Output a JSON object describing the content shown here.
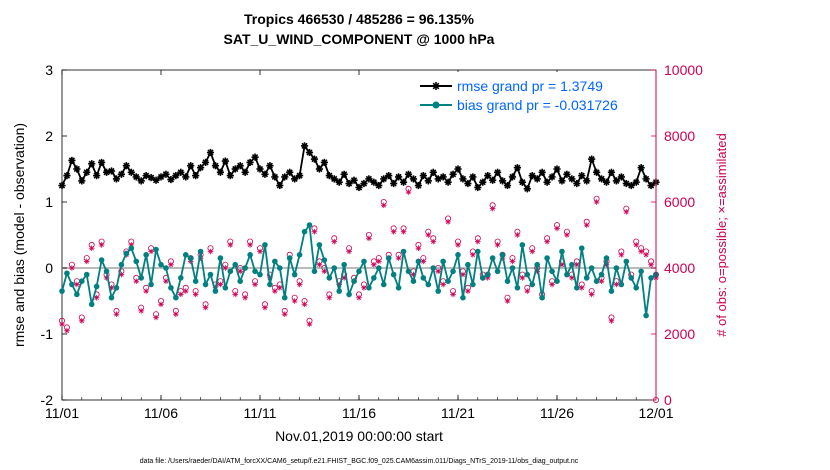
{
  "chart_data": {
    "type": "line",
    "title": "Tropics 466530 / 485286 = 96.135%",
    "subtitle": "SAT_U_WIND_COMPONENT @ 1000 hPa",
    "xlabel": "Nov.01,2019 00:00:00 start",
    "ylabel": "rmse and bias (model - observation)",
    "ylabel_right": "# of obs: o=possible; ×=assimilated",
    "footer": "data file: /Users/raeder/DAI/ATM_forcXX/CAM6_setup/f.e21.FHIST_BGC.f09_025.CAM6assim.011/Diags_NTrS_2019-11/obs_diag_output.nc",
    "x_tick_labels": [
      "11/01",
      "11/06",
      "11/11",
      "11/16",
      "11/21",
      "11/26",
      "12/01"
    ],
    "x_tick_days": [
      0,
      5,
      10,
      15,
      20,
      25,
      30
    ],
    "xlim_days": [
      0,
      30
    ],
    "ylim": [
      -2,
      3
    ],
    "y_ticks": [
      -2,
      -1,
      0,
      1,
      2,
      3
    ],
    "ylim_right": [
      0,
      10000
    ],
    "y_ticks_right": [
      0,
      2000,
      4000,
      6000,
      8000,
      10000
    ],
    "zero_line": 0,
    "grid": false,
    "legend_position": "top-right",
    "colors": {
      "rmse": "#000000",
      "bias": "#008080",
      "obs": "#cc0055",
      "zero_line": "#bbbbbb",
      "legend_text": "#0066ff"
    },
    "series": [
      {
        "name": "rmse grand pr = 1.3749",
        "marker": "asterisk",
        "step_days": 0.25,
        "values": [
          1.25,
          1.4,
          1.63,
          1.5,
          1.32,
          1.45,
          1.58,
          1.4,
          1.6,
          1.45,
          1.47,
          1.35,
          1.42,
          1.55,
          1.45,
          1.38,
          1.32,
          1.4,
          1.37,
          1.33,
          1.38,
          1.42,
          1.34,
          1.4,
          1.45,
          1.38,
          1.55,
          1.4,
          1.52,
          1.6,
          1.75,
          1.55,
          1.45,
          1.62,
          1.4,
          1.5,
          1.55,
          1.45,
          1.6,
          1.68,
          1.5,
          1.42,
          1.55,
          1.38,
          1.25,
          1.38,
          1.45,
          1.35,
          1.4,
          1.85,
          1.75,
          1.65,
          1.5,
          1.6,
          1.4,
          1.35,
          1.3,
          1.42,
          1.28,
          1.33,
          1.22,
          1.28,
          1.35,
          1.3,
          1.25,
          1.35,
          1.4,
          1.28,
          1.38,
          1.3,
          1.42,
          1.35,
          1.25,
          1.4,
          1.32,
          1.45,
          1.35,
          1.38,
          1.3,
          1.42,
          1.5,
          1.35,
          1.28,
          1.38,
          1.22,
          1.3,
          1.4,
          1.33,
          1.45,
          1.32,
          1.25,
          1.38,
          1.52,
          1.3,
          1.2,
          1.4,
          1.35,
          1.45,
          1.3,
          1.38,
          1.5,
          1.32,
          1.42,
          1.35,
          1.28,
          1.4,
          1.32,
          1.65,
          1.45,
          1.35,
          1.3,
          1.45,
          1.32,
          1.38,
          1.28,
          1.25,
          1.3,
          1.52,
          1.35,
          1.25,
          1.3
        ]
      },
      {
        "name": "bias grand pr = -0.031726",
        "marker": "filled-circle",
        "step_days": 0.25,
        "values": [
          -0.35,
          -0.08,
          -0.25,
          -0.4,
          -0.2,
          -0.1,
          -0.55,
          -0.28,
          0.12,
          -0.05,
          -0.45,
          -0.3,
          0.05,
          0.22,
          0.3,
          0.1,
          -0.15,
          0.2,
          -0.25,
          0.28,
          0.05,
          0.0,
          -0.3,
          -0.45,
          -0.15,
          0.2,
          0.15,
          -0.2,
          0.25,
          -0.25,
          -0.1,
          -0.35,
          0.15,
          -0.3,
          -0.05,
          0.05,
          -0.2,
          0.0,
          0.2,
          -0.05,
          -0.1,
          0.35,
          -0.25,
          0.1,
          0.0,
          -0.45,
          0.15,
          -0.1,
          0.2,
          0.55,
          0.65,
          -0.05,
          0.35,
          0.12,
          -0.15,
          0.0,
          -0.35,
          0.05,
          -0.4,
          -0.2,
          -0.05,
          0.1,
          -0.3,
          -0.15,
          0.0,
          -0.25,
          0.15,
          -0.1,
          -0.3,
          0.25,
          -0.05,
          -0.2,
          0.1,
          -0.15,
          -0.25,
          0.0,
          -0.35,
          0.1,
          -0.2,
          -0.05,
          0.2,
          -0.45,
          0.05,
          -0.25,
          0.25,
          -0.15,
          -0.1,
          0.15,
          -0.05,
          0.2,
          -0.2,
          0.0,
          -0.3,
          0.35,
          -0.1,
          -0.25,
          0.05,
          -0.45,
          0.15,
          -0.05,
          -0.2,
          0.25,
          -0.1,
          0.05,
          -0.3,
          0.3,
          -0.15,
          0.0,
          -0.2,
          -0.1,
          0.15,
          -0.35,
          0.0,
          -0.25,
          0.1,
          -0.15,
          -0.3,
          -0.05,
          -0.72,
          -0.15,
          -0.1
        ]
      },
      {
        "name": "obs possible",
        "marker": "open-circle",
        "axis": "right",
        "step_days": 0.25,
        "values": [
          2400,
          2200,
          4100,
          3600,
          2500,
          4300,
          4700,
          3200,
          4800,
          3800,
          3500,
          2700,
          3900,
          4500,
          4800,
          3700,
          2800,
          3400,
          4600,
          2600,
          3000,
          3700,
          4200,
          2700,
          3300,
          3400,
          4300,
          3300,
          4400,
          2900,
          4600,
          3500,
          3600,
          4100,
          4800,
          3300,
          4000,
          3200,
          4800,
          3600,
          4600,
          2900,
          3800,
          3400,
          3500,
          2700,
          4400,
          3100,
          3600,
          3000,
          2400,
          5200,
          4200,
          4000,
          3200,
          4900,
          3600,
          3800,
          4600,
          3700,
          3200,
          3500,
          5000,
          4200,
          4300,
          6000,
          4400,
          5200,
          4400,
          5200,
          6400,
          3900,
          4700,
          4300,
          5100,
          4900,
          4000,
          3600,
          5500,
          3300,
          4800,
          3900,
          3400,
          4500,
          4900,
          3800,
          3800,
          5900,
          4800,
          4400,
          3100,
          4300,
          5100,
          3800,
          3400,
          4600,
          4000,
          3200,
          4900,
          3600,
          5300,
          4200,
          5100,
          3800,
          4200,
          3500,
          5400,
          3300,
          6100,
          3700,
          4200,
          2500,
          3600,
          4500,
          5800,
          3800,
          4800,
          4600,
          4500,
          4200,
          3800
        ]
      },
      {
        "name": "obs assimilated",
        "marker": "asterisk",
        "axis": "right",
        "step_days": 0.25,
        "values": [
          2300,
          2100,
          4000,
          3500,
          2400,
          4200,
          4600,
          3100,
          4700,
          3700,
          3400,
          2600,
          3800,
          4400,
          4700,
          3600,
          2700,
          3300,
          4500,
          2500,
          2900,
          3600,
          4100,
          2600,
          3200,
          3300,
          4200,
          3200,
          4300,
          2800,
          4500,
          3400,
          3500,
          4000,
          4700,
          3200,
          3900,
          3100,
          4700,
          3500,
          4500,
          2800,
          3700,
          3300,
          3400,
          2600,
          4300,
          3000,
          3500,
          2900,
          2300,
          5100,
          4100,
          3900,
          3100,
          4800,
          3500,
          3700,
          4500,
          3600,
          3100,
          3400,
          4900,
          4100,
          4200,
          5900,
          4300,
          5100,
          4300,
          5100,
          6300,
          3800,
          4600,
          4200,
          5000,
          4800,
          3900,
          3500,
          5400,
          3200,
          4700,
          3800,
          3300,
          4400,
          4800,
          3700,
          3700,
          5800,
          4700,
          4300,
          3000,
          4200,
          5000,
          3700,
          3300,
          4500,
          3900,
          3100,
          4800,
          3500,
          5200,
          4100,
          5000,
          3700,
          4100,
          3400,
          5300,
          3200,
          6000,
          3600,
          4100,
          2400,
          3500,
          4400,
          5700,
          3700,
          4700,
          4500,
          4400,
          4100,
          3700
        ]
      }
    ]
  }
}
